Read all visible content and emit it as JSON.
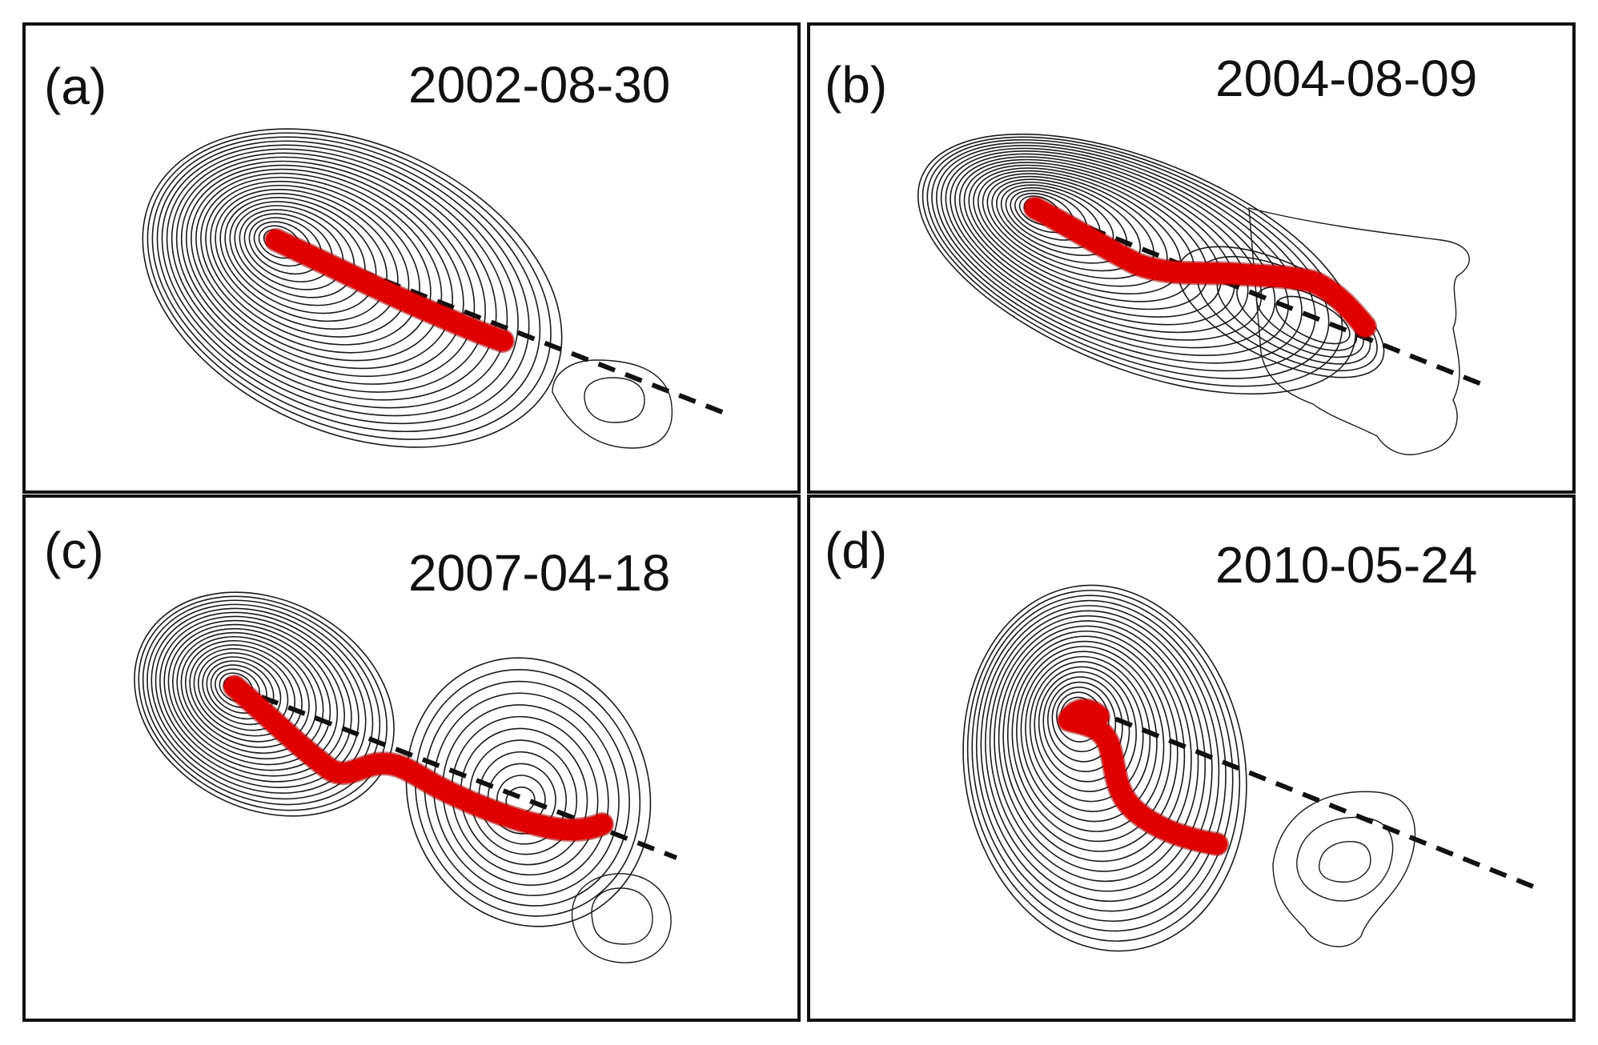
{
  "panels": [
    {
      "label": "(a)",
      "date": "2002-08-30"
    },
    {
      "label": "(b)",
      "date": "2004-08-09"
    },
    {
      "label": "(c)",
      "date": "2007-04-18"
    },
    {
      "label": "(d)",
      "date": "2010-05-24"
    }
  ],
  "colors": {
    "jet": "#e00000",
    "contours": "#1a1a1a",
    "axis": "#111111",
    "frame": "#111111"
  }
}
